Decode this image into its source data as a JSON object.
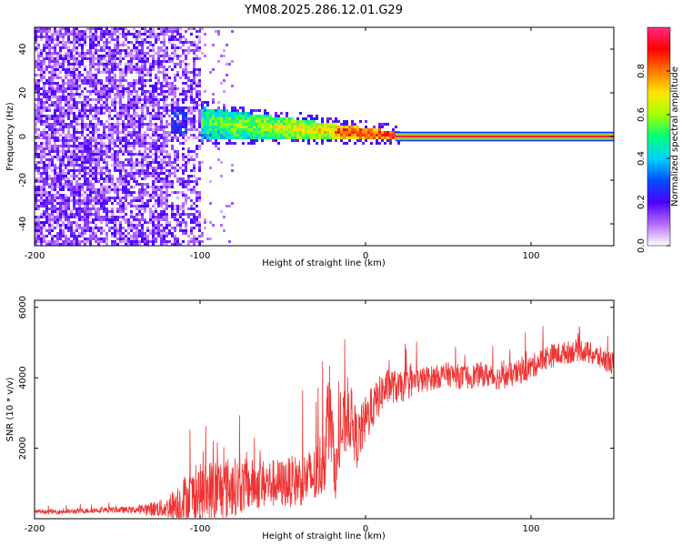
{
  "title": "YM08.2025.286.12.01.G29",
  "chart_data": [
    {
      "type": "heatmap",
      "xlabel": "Height of straight line (km)",
      "ylabel": "Frequency (Hz)",
      "xlim": [
        -200,
        150
      ],
      "ylim": [
        -50,
        50
      ],
      "xticks": [
        -200,
        -100,
        0,
        100
      ],
      "yticks": [
        -40,
        -20,
        0,
        20,
        40
      ],
      "colorbar": {
        "label": "Normalized spectral amplitude",
        "range": [
          0,
          1
        ],
        "ticks": [
          "0.0",
          "0.2",
          "0.4",
          "0.6",
          "0.8"
        ],
        "colormap": [
          "#ffffff",
          "#b469ff",
          "#4b00ff",
          "#0050ff",
          "#00d2ff",
          "#00ff78",
          "#a5ff00",
          "#ffe600",
          "#ff7800",
          "#ff0000",
          "#ff2882"
        ]
      },
      "regions": [
        {
          "x_range": [
            -200,
            -100
          ],
          "pattern": "broadband noise",
          "amplitude": 0.1
        },
        {
          "x_range": [
            -120,
            -100
          ],
          "pattern": "feature near 8 Hz",
          "amplitude": 0.2
        },
        {
          "x_range": [
            -100,
            -20
          ],
          "pattern": "band narrowing from 8 Hz toward 2 Hz",
          "amplitude": 0.4
        },
        {
          "x_range": [
            -20,
            20
          ],
          "pattern": "narrow band near 1 Hz",
          "amplitude": 0.8
        },
        {
          "x_range": [
            20,
            150
          ],
          "pattern": "constant line at 0 Hz",
          "amplitude": 1.0
        }
      ]
    },
    {
      "type": "line",
      "xlabel": "Height of straight line (km)",
      "ylabel": "SNR (10 * v/v)",
      "xlim": [
        -200,
        150
      ],
      "ylim": [
        0,
        6200
      ],
      "xticks": [
        -200,
        -100,
        0,
        100
      ],
      "yticks": [
        2000,
        4000,
        6000
      ],
      "color": "#ee3333",
      "series": [
        {
          "name": "SNR",
          "x": [
            -200,
            -180,
            -160,
            -140,
            -120,
            -110,
            -100,
            -90,
            -80,
            -70,
            -60,
            -50,
            -40,
            -30,
            -25,
            -22,
            -20,
            -18,
            -15,
            -10,
            -5,
            0,
            5,
            10,
            15,
            20,
            30,
            40,
            50,
            60,
            70,
            80,
            90,
            100,
            110,
            120,
            130,
            140,
            150
          ],
          "y": [
            200,
            200,
            250,
            250,
            300,
            500,
            700,
            800,
            900,
            950,
            1000,
            1000,
            1100,
            1200,
            1800,
            3200,
            2200,
            1200,
            2400,
            3000,
            2200,
            2800,
            3200,
            3600,
            3800,
            3700,
            3900,
            4000,
            4100,
            4000,
            4100,
            4000,
            4100,
            4300,
            4600,
            4700,
            4800,
            4600,
            4400
          ],
          "envelope": [
            120,
            140,
            160,
            190,
            600,
            1500,
            1700,
            2000,
            1700,
            1500,
            1400,
            1400,
            1500,
            1700,
            2200,
            3000,
            2000,
            1400,
            2000,
            2000,
            1600,
            1400,
            1200,
            1100,
            1000,
            900,
            800,
            700,
            700,
            700,
            700,
            700,
            700,
            700,
            700,
            650,
            650,
            650,
            650
          ]
        }
      ]
    }
  ]
}
